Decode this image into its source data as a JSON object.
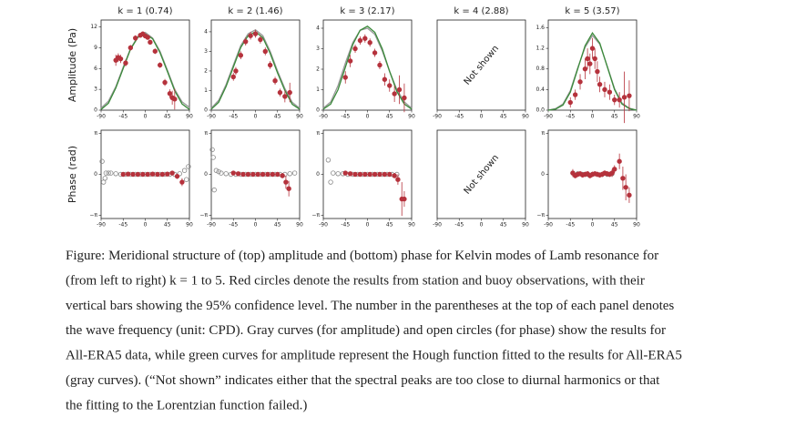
{
  "chart_data": [
    {
      "type": "line",
      "title": "k = 1 (0.74)",
      "ylabel": "Amplitude (Pa)",
      "xlim": [
        -90,
        90
      ],
      "xticks": [
        -90,
        -45,
        0,
        45,
        90
      ],
      "ylim": [
        0,
        13
      ],
      "yticks": [
        0,
        3,
        6,
        9,
        12
      ],
      "series": [
        {
          "color": "#999999",
          "style": "line",
          "x": [
            -90,
            -75,
            -60,
            -45,
            -30,
            -15,
            0,
            15,
            30,
            45,
            60,
            75,
            90
          ],
          "values": [
            0.3,
            1.3,
            3.4,
            6.2,
            8.9,
            10.6,
            11.2,
            10.4,
            8.5,
            5.8,
            3.0,
            1.2,
            0.4
          ]
        },
        {
          "color": "#3a8a3a",
          "style": "line",
          "x": [
            -90,
            -75,
            -60,
            -45,
            -30,
            -15,
            0,
            15,
            30,
            45,
            60,
            75,
            90
          ],
          "values": [
            0.1,
            1.0,
            3.2,
            6.0,
            8.8,
            10.5,
            11.0,
            10.3,
            8.3,
            5.6,
            2.8,
            0.9,
            0.1
          ]
        },
        {
          "color": "#b5323c",
          "style": "points",
          "x": [
            -60,
            -55,
            -50,
            -40,
            -30,
            -20,
            -10,
            -5,
            0,
            5,
            10,
            20,
            30,
            40,
            50,
            55,
            60
          ],
          "values": [
            7.2,
            7.6,
            7.4,
            6.8,
            9.0,
            10.4,
            10.8,
            11.0,
            10.7,
            10.5,
            9.8,
            8.5,
            6.5,
            4.0,
            2.4,
            1.8,
            1.6
          ],
          "errors": [
            0.8,
            0.6,
            0.6,
            0.5,
            0.4,
            0.4,
            0.3,
            0.3,
            0.3,
            0.3,
            0.3,
            0.4,
            0.4,
            0.5,
            0.6,
            1.0,
            1.5
          ]
        }
      ]
    },
    {
      "type": "line",
      "title": "k = 2 (1.46)",
      "xlim": [
        -90,
        90
      ],
      "xticks": [
        -90,
        -45,
        0,
        45,
        90
      ],
      "ylim": [
        0,
        4.6
      ],
      "yticks": [
        0,
        1,
        2,
        3,
        4
      ],
      "series": [
        {
          "color": "#999999",
          "style": "line",
          "x": [
            -90,
            -75,
            -60,
            -45,
            -30,
            -15,
            0,
            15,
            30,
            45,
            60,
            75,
            90
          ],
          "values": [
            0.1,
            0.5,
            1.3,
            2.3,
            3.3,
            3.9,
            4.1,
            3.8,
            3.0,
            2.0,
            1.1,
            0.4,
            0.1
          ]
        },
        {
          "color": "#3a8a3a",
          "style": "line",
          "x": [
            -90,
            -75,
            -60,
            -45,
            -30,
            -15,
            0,
            15,
            30,
            45,
            60,
            75,
            90
          ],
          "values": [
            0.05,
            0.4,
            1.2,
            2.2,
            3.2,
            3.8,
            4.0,
            3.7,
            2.9,
            1.9,
            1.0,
            0.3,
            0.05
          ]
        },
        {
          "color": "#b5323c",
          "style": "points",
          "x": [
            -45,
            -40,
            -30,
            -20,
            -10,
            0,
            10,
            20,
            30,
            40,
            50,
            60,
            70
          ],
          "values": [
            1.7,
            2.0,
            2.8,
            3.5,
            3.8,
            3.9,
            3.6,
            3.0,
            2.3,
            1.5,
            0.9,
            0.7,
            0.9
          ],
          "errors": [
            0.2,
            0.2,
            0.2,
            0.2,
            0.2,
            0.2,
            0.2,
            0.2,
            0.2,
            0.2,
            0.2,
            0.3,
            0.5
          ]
        }
      ]
    },
    {
      "type": "line",
      "title": "k = 3 (2.17)",
      "xlim": [
        -90,
        90
      ],
      "xticks": [
        -90,
        -45,
        0,
        45,
        90
      ],
      "ylim": [
        0,
        4.4
      ],
      "yticks": [
        0,
        1,
        2,
        3,
        4
      ],
      "series": [
        {
          "color": "#999999",
          "style": "line",
          "x": [
            -90,
            -75,
            -60,
            -45,
            -30,
            -15,
            0,
            15,
            30,
            45,
            60,
            75,
            90
          ],
          "values": [
            0.1,
            0.4,
            1.2,
            2.3,
            3.3,
            3.9,
            4.0,
            3.7,
            2.9,
            1.9,
            1.0,
            0.4,
            0.1
          ]
        },
        {
          "color": "#3a8a3a",
          "style": "line",
          "x": [
            -90,
            -75,
            -60,
            -45,
            -30,
            -15,
            0,
            15,
            30,
            45,
            60,
            75,
            90
          ],
          "values": [
            0.05,
            0.3,
            1.0,
            2.1,
            3.2,
            3.9,
            4.1,
            3.8,
            3.0,
            1.9,
            0.9,
            0.3,
            0.05
          ]
        },
        {
          "color": "#b5323c",
          "style": "points",
          "x": [
            -45,
            -35,
            -25,
            -15,
            -5,
            5,
            15,
            25,
            35,
            45,
            55,
            65,
            75
          ],
          "values": [
            1.6,
            2.4,
            3.0,
            3.4,
            3.5,
            3.3,
            2.8,
            2.2,
            1.5,
            1.2,
            0.8,
            1.0,
            0.6
          ],
          "errors": [
            0.3,
            0.3,
            0.2,
            0.2,
            0.2,
            0.2,
            0.2,
            0.2,
            0.3,
            0.3,
            0.4,
            0.7,
            0.7
          ]
        }
      ]
    },
    {
      "type": "line",
      "title": "k = 4 (2.88)",
      "annotation": "Not shown",
      "xlim": [
        -90,
        90
      ],
      "xticks": [
        -90,
        -45,
        0,
        45,
        90
      ],
      "series": []
    },
    {
      "type": "line",
      "title": "k = 5 (3.57)",
      "xlim": [
        -90,
        90
      ],
      "xticks": [
        -90,
        -45,
        0,
        45,
        90
      ],
      "ylim": [
        0,
        1.75
      ],
      "yticks": [
        {
          "value": 0,
          "label": "0.0"
        },
        0.4,
        0.8,
        1.2,
        1.6
      ],
      "series": [
        {
          "color": "#999999",
          "style": "line",
          "x": [
            -90,
            -75,
            -60,
            -45,
            -30,
            -15,
            0,
            15,
            30,
            45,
            60,
            75,
            90
          ],
          "values": [
            0,
            0.03,
            0.12,
            0.38,
            0.82,
            1.22,
            1.45,
            1.28,
            0.86,
            0.42,
            0.14,
            0.04,
            0
          ]
        },
        {
          "color": "#3a8a3a",
          "style": "line",
          "x": [
            -90,
            -75,
            -60,
            -45,
            -30,
            -15,
            0,
            15,
            30,
            45,
            60,
            75,
            90
          ],
          "values": [
            0,
            0.02,
            0.1,
            0.35,
            0.8,
            1.25,
            1.5,
            1.3,
            0.85,
            0.4,
            0.12,
            0.03,
            0
          ]
        },
        {
          "color": "#b5323c",
          "style": "points",
          "x": [
            -45,
            -35,
            -25,
            -15,
            -10,
            -5,
            0,
            5,
            10,
            15,
            25,
            35,
            45,
            55,
            65,
            75
          ],
          "values": [
            0.15,
            0.3,
            0.55,
            0.8,
            1.0,
            0.9,
            1.2,
            1.0,
            0.75,
            0.5,
            0.4,
            0.35,
            0.2,
            0.2,
            0.25,
            0.28
          ],
          "errors": [
            0.1,
            0.1,
            0.15,
            0.2,
            0.2,
            0.2,
            0.2,
            0.2,
            0.2,
            0.15,
            0.15,
            0.15,
            0.1,
            0.15,
            0.5,
            0.3
          ]
        }
      ]
    },
    {
      "type": "line",
      "ylabel": "Phase (rad)",
      "xlim": [
        -90,
        90
      ],
      "xticks": [
        -90,
        -45,
        0,
        45,
        90
      ],
      "ylim": [
        -3.4,
        3.4
      ],
      "yticks": [
        {
          "value": 3.14159,
          "label": "π"
        },
        0,
        {
          "value": -3.14159,
          "label": "−π"
        }
      ],
      "series": [
        {
          "color": "#888888",
          "style": "open",
          "x": [
            -88,
            -85,
            -82,
            -80,
            -75,
            -70,
            -60,
            -50,
            -40,
            -30,
            -20,
            -10,
            0,
            10,
            20,
            30,
            40,
            50,
            60,
            70,
            80,
            84,
            88
          ],
          "values": [
            1.0,
            -0.6,
            -0.3,
            0.1,
            0.1,
            0.1,
            0.05,
            0,
            0,
            0,
            0,
            0,
            0,
            0,
            0,
            0,
            0,
            0,
            0,
            0.05,
            0.3,
            -0.4,
            0.6
          ]
        },
        {
          "color": "#b5323c",
          "style": "points",
          "x": [
            -45,
            -35,
            -25,
            -15,
            -5,
            5,
            15,
            25,
            35,
            45,
            55,
            65,
            75
          ],
          "values": [
            0,
            0.02,
            0,
            0,
            0,
            0,
            0.02,
            0,
            0,
            0.02,
            0.1,
            -0.15,
            -0.6
          ],
          "errors": [
            0.1,
            0.1,
            0.1,
            0.1,
            0.1,
            0.1,
            0.1,
            0.1,
            0.1,
            0.1,
            0.15,
            0.2,
            0.3
          ]
        }
      ]
    },
    {
      "type": "line",
      "xlim": [
        -90,
        90
      ],
      "xticks": [
        -90,
        -45,
        0,
        45,
        90
      ],
      "ylim": [
        -3.4,
        3.4
      ],
      "yticks": [
        {
          "value": 3.14159,
          "label": "π"
        },
        0,
        {
          "value": -3.14159,
          "label": "−π"
        }
      ],
      "series": [
        {
          "color": "#888888",
          "style": "open",
          "x": [
            -88,
            -86,
            -84,
            -80,
            -75,
            -70,
            -60,
            -50,
            -40,
            -30,
            -20,
            -10,
            0,
            10,
            20,
            30,
            40,
            50,
            60,
            70,
            80
          ],
          "values": [
            1.9,
            1.3,
            -1.2,
            0.3,
            0.2,
            0.1,
            0.05,
            0,
            0,
            0,
            0,
            0,
            0,
            0,
            0,
            0,
            0,
            0,
            0,
            0.05,
            0.1
          ]
        },
        {
          "color": "#b5323c",
          "style": "points",
          "x": [
            -45,
            -35,
            -25,
            -15,
            -5,
            5,
            15,
            25,
            35,
            45,
            55,
            62,
            68
          ],
          "values": [
            0.1,
            0.05,
            0,
            0,
            0,
            0,
            0,
            0,
            0,
            0,
            -0.1,
            -0.6,
            -1.1
          ],
          "errors": [
            0.1,
            0.1,
            0.1,
            0.1,
            0.1,
            0.1,
            0.1,
            0.1,
            0.1,
            0.15,
            0.2,
            0.5,
            0.6
          ]
        }
      ]
    },
    {
      "type": "line",
      "xlim": [
        -90,
        90
      ],
      "xticks": [
        -90,
        -45,
        0,
        45,
        90
      ],
      "ylim": [
        -3.4,
        3.4
      ],
      "yticks": [
        {
          "value": 3.14159,
          "label": "π"
        },
        0,
        {
          "value": -3.14159,
          "label": "−π"
        }
      ],
      "series": [
        {
          "color": "#888888",
          "style": "open",
          "x": [
            -80,
            -75,
            -70,
            -60,
            -50,
            -40,
            -30,
            -20,
            -10,
            0,
            10,
            20,
            30,
            40,
            50,
            60
          ],
          "values": [
            1.1,
            -0.6,
            0.1,
            0.05,
            0.05,
            0,
            0,
            0,
            0,
            0,
            0,
            0,
            0,
            0,
            0,
            0
          ]
        },
        {
          "color": "#b5323c",
          "style": "points",
          "x": [
            -45,
            -35,
            -25,
            -15,
            -5,
            5,
            15,
            25,
            35,
            45,
            55,
            62,
            70,
            75
          ],
          "values": [
            0.1,
            0.05,
            0,
            0,
            0,
            0,
            0,
            0,
            0,
            0,
            -0.1,
            -0.4,
            -1.9,
            -1.9
          ],
          "errors": [
            0.1,
            0.1,
            0.1,
            0.1,
            0.1,
            0.1,
            0.1,
            0.1,
            0.1,
            0.15,
            0.2,
            0.4,
            1.3,
            0.6
          ]
        }
      ]
    },
    {
      "type": "line",
      "annotation": "Not shown",
      "xlim": [
        -90,
        90
      ],
      "xticks": [
        -90,
        -45,
        0,
        45,
        90
      ],
      "series": []
    },
    {
      "type": "line",
      "xlim": [
        -90,
        90
      ],
      "xticks": [
        -90,
        -45,
        0,
        45,
        90
      ],
      "ylim": [
        -3.4,
        3.4
      ],
      "yticks": [
        {
          "value": 3.14159,
          "label": "π"
        },
        0,
        {
          "value": -3.14159,
          "label": "−π"
        }
      ],
      "series": [
        {
          "color": "#888888",
          "style": "open",
          "x": [
            -40,
            -30,
            -20,
            -10,
            0,
            10,
            20,
            30,
            40
          ],
          "values": [
            0.1,
            0.05,
            0,
            0,
            0,
            0,
            0,
            0,
            0.05
          ]
        },
        {
          "color": "#b5323c",
          "style": "points",
          "x": [
            -40,
            -35,
            -30,
            -25,
            -20,
            -15,
            -10,
            -5,
            0,
            5,
            10,
            15,
            20,
            25,
            30,
            35,
            40,
            45,
            55,
            62,
            68,
            75
          ],
          "values": [
            0.1,
            -0.1,
            0,
            0.05,
            -0.05,
            0,
            0.05,
            -0.1,
            0,
            0.05,
            0,
            -0.05,
            0,
            0.1,
            0.05,
            0,
            0.1,
            0.4,
            1.0,
            -0.3,
            -1.0,
            -1.6
          ],
          "errors": [
            0.3,
            0.2,
            0.2,
            0.2,
            0.2,
            0.2,
            0.2,
            0.2,
            0.2,
            0.2,
            0.2,
            0.2,
            0.2,
            0.2,
            0.2,
            0.2,
            0.3,
            0.3,
            0.6,
            0.9,
            1.0,
            0.6
          ]
        }
      ]
    }
  ],
  "caption": [
    "Figure: Meridional structure of (top) amplitude and (bottom) phase for Kelvin modes of Lamb resonance for",
    "(from left to right) k = 1 to 5. Red circles denote the results from station and buoy observations, with their",
    "vertical bars showing the 95% confidence level. The number in the parentheses at the top of each panel denotes",
    "the wave frequency (unit: CPD). Gray curves (for amplitude) and open circles (for phase) show the results for",
    "All-ERA5 data, while green curves for amplitude represent the Hough function fitted to the results for All-ERA5",
    "(gray curves). (“Not shown” indicates either that the spectral peaks are too close to diurnal harmonics or that",
    "the fitting to the Lorentzian function failed.)"
  ]
}
